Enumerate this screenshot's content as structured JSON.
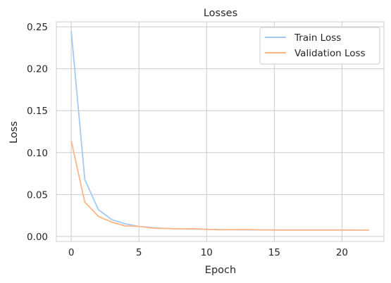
{
  "chart_data": {
    "type": "line",
    "title": "Losses",
    "xlabel": "Epoch",
    "ylabel": "Loss",
    "xlim": [
      -1.1,
      23.1
    ],
    "ylim": [
      -0.006,
      0.256
    ],
    "xticks": [
      0,
      5,
      10,
      15,
      20
    ],
    "yticks": [
      0.0,
      0.05,
      0.1,
      0.15,
      0.2,
      0.25
    ],
    "xtick_labels": [
      "0",
      "5",
      "10",
      "15",
      "20"
    ],
    "ytick_labels": [
      "0.00",
      "0.05",
      "0.10",
      "0.15",
      "0.20",
      "0.25"
    ],
    "grid": true,
    "legend_position": "top-right",
    "series": [
      {
        "name": "Train Loss",
        "color": "#a1c9f4",
        "x": [
          0,
          1,
          2,
          3,
          4,
          5,
          6,
          7,
          8,
          9,
          10,
          11,
          12,
          13,
          14,
          15,
          16,
          17,
          18,
          19,
          20,
          21,
          22
        ],
        "y": [
          0.245,
          0.068,
          0.032,
          0.02,
          0.015,
          0.012,
          0.0105,
          0.0095,
          0.009,
          0.0088,
          0.0085,
          0.0082,
          0.008,
          0.0079,
          0.0078,
          0.0077,
          0.0077,
          0.0076,
          0.0076,
          0.0076,
          0.0076,
          0.0075,
          0.0075
        ]
      },
      {
        "name": "Validation Loss",
        "color": "#ffb482",
        "x": [
          0,
          1,
          2,
          3,
          4,
          5,
          6,
          7,
          8,
          9,
          10,
          11,
          12,
          13,
          14,
          15,
          16,
          17,
          18,
          19,
          20,
          21,
          22
        ],
        "y": [
          0.114,
          0.041,
          0.024,
          0.017,
          0.0125,
          0.012,
          0.01,
          0.0095,
          0.009,
          0.0092,
          0.0085,
          0.008,
          0.0081,
          0.0083,
          0.0078,
          0.0077,
          0.0077,
          0.0077,
          0.0077,
          0.0076,
          0.0076,
          0.0076,
          0.0076
        ]
      }
    ]
  }
}
